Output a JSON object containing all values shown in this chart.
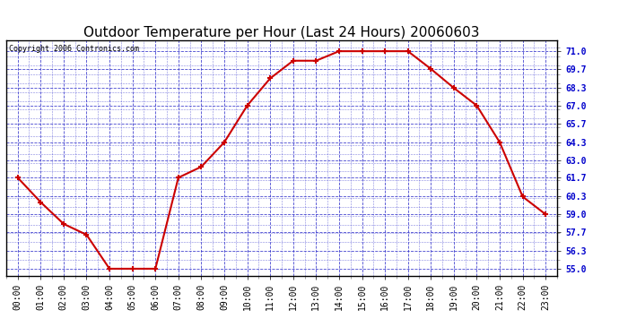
{
  "title": "Outdoor Temperature per Hour (Last 24 Hours) 20060603",
  "copyright": "Copyright 2006 Contronics.com",
  "hours": [
    "00:00",
    "01:00",
    "02:00",
    "03:00",
    "04:00",
    "05:00",
    "06:00",
    "07:00",
    "08:00",
    "09:00",
    "10:00",
    "11:00",
    "12:00",
    "13:00",
    "14:00",
    "15:00",
    "16:00",
    "17:00",
    "18:00",
    "19:00",
    "20:00",
    "21:00",
    "22:00",
    "23:00"
  ],
  "temps": [
    61.7,
    59.9,
    58.3,
    57.5,
    55.0,
    55.0,
    55.0,
    61.7,
    62.5,
    64.3,
    67.0,
    69.0,
    70.3,
    70.3,
    71.0,
    71.0,
    71.0,
    71.0,
    69.7,
    68.3,
    67.0,
    64.3,
    60.3,
    59.0
  ],
  "y_ticks": [
    55.0,
    56.3,
    57.7,
    59.0,
    60.3,
    61.7,
    63.0,
    64.3,
    65.7,
    67.0,
    68.3,
    69.7,
    71.0
  ],
  "ylim": [
    54.5,
    71.8
  ],
  "line_color": "#cc0000",
  "marker_color": "#cc0000",
  "grid_color": "#3333cc",
  "bg_color": "#ffffff",
  "plot_bg_color": "#ffffff",
  "title_fontsize": 11,
  "tick_fontsize": 7,
  "copyright_fontsize": 6,
  "ytick_color": "#0000cc"
}
